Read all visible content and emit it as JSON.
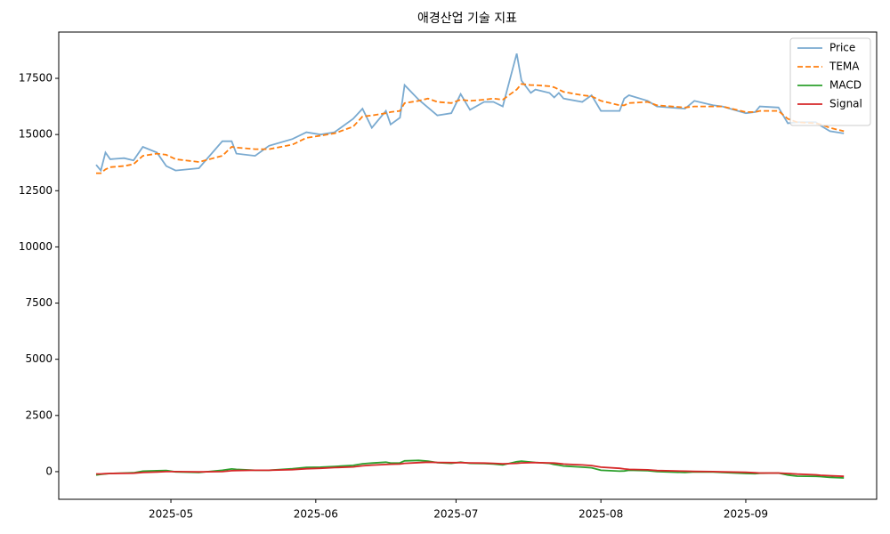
{
  "chart_data": {
    "type": "line",
    "title": "애경산업 기술 지표",
    "x": [
      "2025-04-15",
      "2025-04-16",
      "2025-04-17",
      "2025-04-18",
      "2025-04-21",
      "2025-04-23",
      "2025-04-25",
      "2025-04-28",
      "2025-04-30",
      "2025-05-02",
      "2025-05-07",
      "2025-05-12",
      "2025-05-14",
      "2025-05-15",
      "2025-05-19",
      "2025-05-22",
      "2025-05-27",
      "2025-05-30",
      "2025-06-02",
      "2025-06-05",
      "2025-06-09",
      "2025-06-11",
      "2025-06-13",
      "2025-06-16",
      "2025-06-17",
      "2025-06-19",
      "2025-06-20",
      "2025-06-23",
      "2025-06-25",
      "2025-06-27",
      "2025-06-30",
      "2025-07-02",
      "2025-07-04",
      "2025-07-07",
      "2025-07-09",
      "2025-07-11",
      "2025-07-14",
      "2025-07-15",
      "2025-07-17",
      "2025-07-18",
      "2025-07-21",
      "2025-07-22",
      "2025-07-23",
      "2025-07-24",
      "2025-07-28",
      "2025-07-30",
      "2025-08-01",
      "2025-08-05",
      "2025-08-06",
      "2025-08-07",
      "2025-08-11",
      "2025-08-13",
      "2025-08-19",
      "2025-08-21",
      "2025-08-25",
      "2025-08-27",
      "2025-09-01",
      "2025-09-03",
      "2025-09-04",
      "2025-09-08",
      "2025-09-10",
      "2025-09-12",
      "2025-09-16",
      "2025-09-17",
      "2025-09-19",
      "2025-09-22"
    ],
    "series": [
      {
        "name": "Price",
        "color": "#7aaad0",
        "style": "solid",
        "values": [
          13650,
          13400,
          14200,
          13900,
          13950,
          13850,
          14450,
          14200,
          13600,
          13400,
          13500,
          14700,
          14700,
          14150,
          14050,
          14500,
          14800,
          15100,
          15000,
          15100,
          15700,
          16150,
          15300,
          16050,
          15450,
          15750,
          17200,
          16550,
          16200,
          15850,
          15950,
          16800,
          16100,
          16450,
          16450,
          16250,
          18600,
          17400,
          16850,
          17000,
          16850,
          16650,
          16850,
          16600,
          16450,
          16750,
          16050,
          16050,
          16600,
          16750,
          16500,
          16250,
          16150,
          16500,
          16300,
          16250,
          15950,
          16000,
          16250,
          16200,
          15500,
          15550,
          15550,
          15400,
          15150,
          15050
        ]
      },
      {
        "name": "TEMA",
        "color": "#ff7f0e",
        "style": "dashed",
        "values": [
          13280,
          13280,
          13450,
          13550,
          13600,
          13680,
          14050,
          14150,
          14100,
          13900,
          13780,
          14050,
          14450,
          14420,
          14350,
          14350,
          14550,
          14850,
          14950,
          15050,
          15350,
          15800,
          15850,
          15950,
          16000,
          16050,
          16400,
          16500,
          16600,
          16450,
          16400,
          16550,
          16500,
          16550,
          16600,
          16550,
          17000,
          17250,
          17200,
          17200,
          17150,
          17100,
          17000,
          16900,
          16750,
          16700,
          16500,
          16300,
          16300,
          16400,
          16450,
          16300,
          16200,
          16250,
          16250,
          16250,
          16000,
          16000,
          16050,
          16050,
          15700,
          15550,
          15500,
          15450,
          15300,
          15150
        ]
      },
      {
        "name": "MACD",
        "color": "#2ca02c",
        "style": "solid",
        "values": [
          -150,
          -120,
          -100,
          -80,
          -60,
          -50,
          20,
          40,
          50,
          -10,
          -40,
          60,
          120,
          100,
          60,
          60,
          130,
          190,
          200,
          230,
          280,
          350,
          380,
          420,
          380,
          390,
          480,
          500,
          470,
          400,
          370,
          420,
          370,
          360,
          340,
          300,
          440,
          470,
          430,
          410,
          370,
          320,
          290,
          250,
          200,
          170,
          60,
          20,
          30,
          60,
          40,
          0,
          -40,
          -10,
          -20,
          -40,
          -80,
          -90,
          -70,
          -60,
          -150,
          -200,
          -210,
          -220,
          -250,
          -280
        ]
      },
      {
        "name": "Signal",
        "color": "#d62728",
        "style": "solid",
        "values": [
          -100,
          -100,
          -90,
          -80,
          -75,
          -70,
          -40,
          -20,
          0,
          0,
          -10,
          0,
          40,
          50,
          60,
          60,
          90,
          130,
          150,
          180,
          210,
          260,
          290,
          320,
          330,
          340,
          370,
          400,
          420,
          410,
          400,
          400,
          390,
          380,
          370,
          350,
          370,
          390,
          400,
          400,
          390,
          380,
          360,
          340,
          300,
          270,
          200,
          150,
          120,
          100,
          80,
          50,
          20,
          10,
          0,
          -10,
          -30,
          -50,
          -60,
          -60,
          -80,
          -110,
          -140,
          -160,
          -180,
          -210
        ]
      }
    ],
    "xlim": [
      "2025-04-07",
      "2025-09-29"
    ],
    "xticks": [
      {
        "value": "2025-05-01",
        "label": "2025-05"
      },
      {
        "value": "2025-06-01",
        "label": "2025-06"
      },
      {
        "value": "2025-07-01",
        "label": "2025-07"
      },
      {
        "value": "2025-08-01",
        "label": "2025-08"
      },
      {
        "value": "2025-09-01",
        "label": "2025-09"
      }
    ],
    "ylim": [
      -1230,
      19560
    ],
    "yticks": [
      0,
      2500,
      5000,
      7500,
      10000,
      12500,
      15000,
      17500
    ],
    "legend": "upper right",
    "grid": false
  }
}
